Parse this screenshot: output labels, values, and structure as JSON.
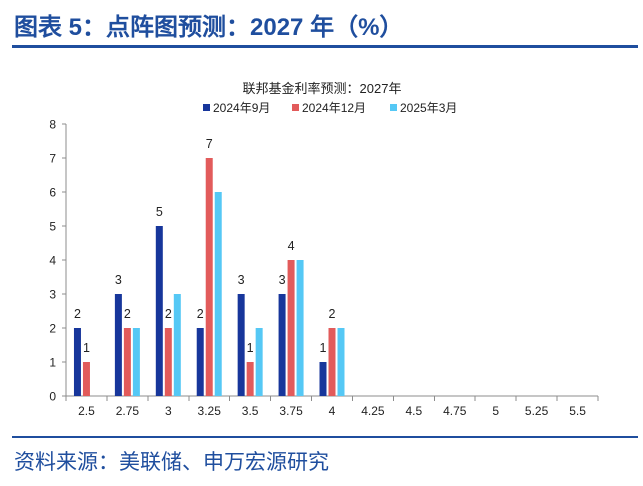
{
  "figure": {
    "label": "图表 5：点阵图预测：2027 年（%）",
    "source": "资料来源：美联储、申万宏源研究"
  },
  "colors": {
    "brand": "#1f4e9e",
    "series": [
      "#17369b",
      "#e25b5b",
      "#55c8f5"
    ]
  },
  "chart_data": {
    "type": "bar",
    "title": "联邦基金利率预测：2027年",
    "categories": [
      "2.5",
      "2.75",
      "3",
      "3.25",
      "3.5",
      "3.75",
      "4",
      "4.25",
      "4.5",
      "4.75",
      "5",
      "5.25",
      "5.5"
    ],
    "series": [
      {
        "name": "2024年9月",
        "values": [
          2,
          3,
          5,
          2,
          3,
          3,
          1,
          0,
          0,
          0,
          0,
          0,
          0
        ],
        "data_labels": true
      },
      {
        "name": "2024年12月",
        "values": [
          1,
          2,
          2,
          7,
          1,
          4,
          2,
          0,
          0,
          0,
          0,
          0,
          0
        ],
        "data_labels": true
      },
      {
        "name": "2025年3月",
        "values": [
          0,
          2,
          3,
          6,
          2,
          4,
          2,
          0,
          0,
          0,
          0,
          0,
          0
        ],
        "data_labels": false
      }
    ],
    "xlabel": "",
    "ylabel": "",
    "ylim": [
      0,
      8
    ],
    "yticks": [
      0,
      1,
      2,
      3,
      4,
      5,
      6,
      7,
      8
    ],
    "grid": false
  }
}
